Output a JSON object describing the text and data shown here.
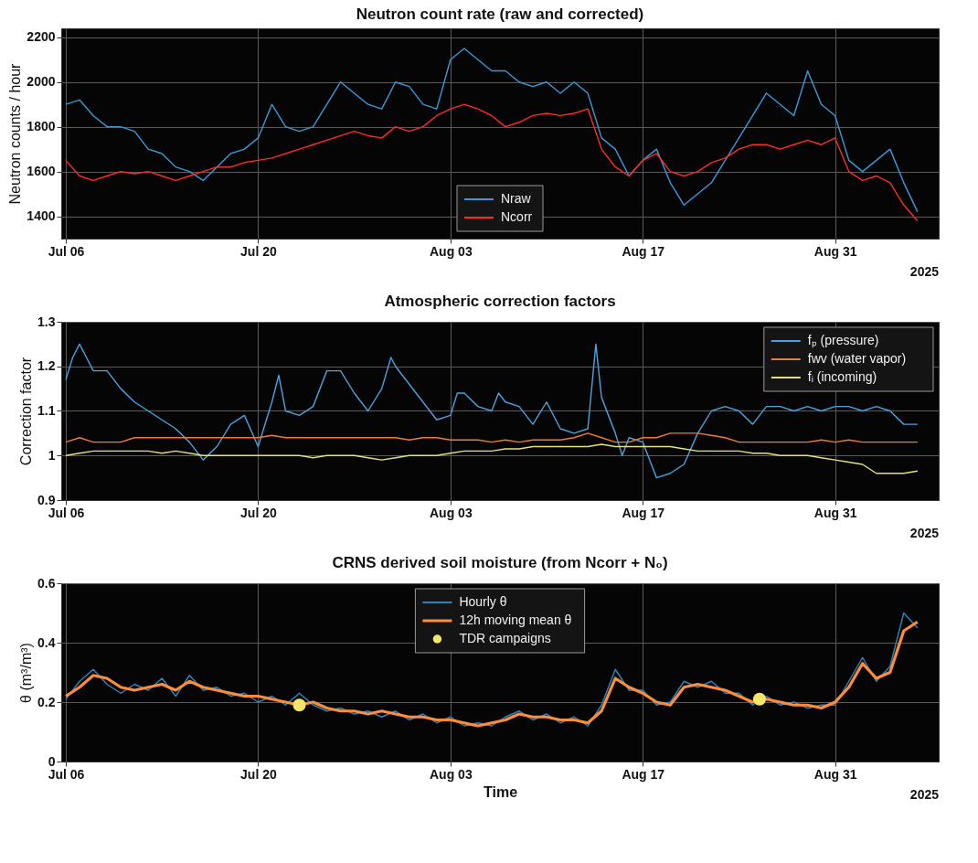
{
  "chart_data": [
    {
      "type": "line",
      "title": "Neutron count rate (raw and corrected)",
      "ylabel": "Neutron counts / hour",
      "x": [
        "2025-07-06",
        "2025-07-07",
        "2025-07-08",
        "2025-07-09",
        "2025-07-10",
        "2025-07-11",
        "2025-07-12",
        "2025-07-13",
        "2025-07-14",
        "2025-07-15",
        "2025-07-16",
        "2025-07-17",
        "2025-07-18",
        "2025-07-19",
        "2025-07-20",
        "2025-07-21",
        "2025-07-22",
        "2025-07-23",
        "2025-07-24",
        "2025-07-25",
        "2025-07-26",
        "2025-07-27",
        "2025-07-28",
        "2025-07-29",
        "2025-07-30",
        "2025-07-31",
        "2025-08-01",
        "2025-08-02",
        "2025-08-03",
        "2025-08-04",
        "2025-08-05",
        "2025-08-06",
        "2025-08-07",
        "2025-08-08",
        "2025-08-09",
        "2025-08-10",
        "2025-08-11",
        "2025-08-12",
        "2025-08-13",
        "2025-08-14",
        "2025-08-15",
        "2025-08-16",
        "2025-08-17",
        "2025-08-18",
        "2025-08-19",
        "2025-08-20",
        "2025-08-21",
        "2025-08-22",
        "2025-08-23",
        "2025-08-24",
        "2025-08-25",
        "2025-08-26",
        "2025-08-27",
        "2025-08-28",
        "2025-08-29",
        "2025-08-30",
        "2025-08-31",
        "2025-09-01",
        "2025-09-02",
        "2025-09-03",
        "2025-09-04",
        "2025-09-05",
        "2025-09-06"
      ],
      "xlim": [
        "2025-07-05T16:00",
        "2025-09-07T13:00"
      ],
      "xticks": [
        {
          "value": "2025-07-06",
          "label": "Jul 06"
        },
        {
          "value": "2025-07-20",
          "label": "Jul 20"
        },
        {
          "value": "2025-08-03",
          "label": "Aug 03"
        },
        {
          "value": "2025-08-17",
          "label": "Aug 17"
        },
        {
          "value": "2025-08-31",
          "label": "Aug 31"
        }
      ],
      "ylim": [
        1300,
        2240
      ],
      "yticks": [
        1400,
        1600,
        1800,
        2000,
        2200
      ],
      "grid": true,
      "legend": "bottom",
      "annotations": [
        "2025"
      ],
      "series": [
        {
          "name": "Nraw",
          "color": "#3a9ad9",
          "values": [
            1900,
            1920,
            1850,
            1800,
            1800,
            1780,
            1700,
            1680,
            1620,
            1600,
            1560,
            1620,
            1680,
            1700,
            1750,
            1900,
            1800,
            1780,
            1800,
            1900,
            2000,
            1950,
            1900,
            1880,
            2000,
            1980,
            1900,
            1880,
            2100,
            2150,
            2100,
            2050,
            2050,
            2000,
            1980,
            2000,
            1950,
            2000,
            1950,
            1750,
            1700,
            1580,
            1650,
            1700,
            1550,
            1450,
            1500,
            1550,
            1650,
            1750,
            1850,
            1950,
            1900,
            1850,
            2050,
            1900,
            1850,
            1650,
            1600,
            1650,
            1700,
            1550,
            1420
          ]
        },
        {
          "name": "Ncorr",
          "color": "#ff2a2a",
          "values": [
            1650,
            1580,
            1560,
            1580,
            1600,
            1590,
            1600,
            1580,
            1560,
            1580,
            1600,
            1620,
            1620,
            1640,
            1650,
            1660,
            1680,
            1700,
            1720,
            1740,
            1760,
            1780,
            1760,
            1750,
            1800,
            1780,
            1800,
            1850,
            1880,
            1900,
            1880,
            1850,
            1800,
            1820,
            1850,
            1860,
            1850,
            1860,
            1880,
            1700,
            1620,
            1580,
            1650,
            1680,
            1600,
            1580,
            1600,
            1640,
            1660,
            1700,
            1720,
            1720,
            1700,
            1720,
            1740,
            1720,
            1750,
            1600,
            1560,
            1580,
            1550,
            1450,
            1380
          ]
        }
      ]
    },
    {
      "type": "line",
      "title": "Atmospheric correction factors",
      "ylabel": "Correction factor",
      "x": [
        "2025-07-06",
        "2025-07-07",
        "2025-07-08",
        "2025-07-09",
        "2025-07-10",
        "2025-07-11",
        "2025-07-12",
        "2025-07-13",
        "2025-07-14",
        "2025-07-15",
        "2025-07-16",
        "2025-07-17",
        "2025-07-18",
        "2025-07-19",
        "2025-07-20",
        "2025-07-21",
        "2025-07-22",
        "2025-07-23",
        "2025-07-24",
        "2025-07-25",
        "2025-07-26",
        "2025-07-27",
        "2025-07-28",
        "2025-07-29",
        "2025-07-30",
        "2025-07-31",
        "2025-08-01",
        "2025-08-02",
        "2025-08-03",
        "2025-08-04",
        "2025-08-05",
        "2025-08-06",
        "2025-08-07",
        "2025-08-08",
        "2025-08-09",
        "2025-08-10",
        "2025-08-11",
        "2025-08-12",
        "2025-08-13",
        "2025-08-14",
        "2025-08-15",
        "2025-08-16",
        "2025-08-17",
        "2025-08-18",
        "2025-08-19",
        "2025-08-20",
        "2025-08-21",
        "2025-08-22",
        "2025-08-23",
        "2025-08-24",
        "2025-08-25",
        "2025-08-26",
        "2025-08-27",
        "2025-08-28",
        "2025-08-29",
        "2025-08-30",
        "2025-08-31",
        "2025-09-01",
        "2025-09-02",
        "2025-09-03",
        "2025-09-04",
        "2025-09-05",
        "2025-09-06"
      ],
      "xlim": [
        "2025-07-05T16:00",
        "2025-09-07T13:00"
      ],
      "xticks": [
        {
          "value": "2025-07-06",
          "label": "Jul 06"
        },
        {
          "value": "2025-07-20",
          "label": "Jul 20"
        },
        {
          "value": "2025-08-03",
          "label": "Aug 03"
        },
        {
          "value": "2025-08-17",
          "label": "Aug 17"
        },
        {
          "value": "2025-08-31",
          "label": "Aug 31"
        }
      ],
      "ylim": [
        0.9,
        1.3
      ],
      "yticks": [
        0.9,
        1,
        1.1,
        1.2,
        1.3
      ],
      "grid": true,
      "legend": "top right",
      "annotations": [
        "2025"
      ],
      "series": [
        {
          "name": "fₚ (pressure)",
          "color": "#4aa3df",
          "x": [
            "2025-07-06",
            "2025-07-06T12:00",
            "2025-07-07",
            "2025-07-07T12:00",
            "2025-07-08",
            "2025-07-09",
            "2025-07-10",
            "2025-07-11",
            "2025-07-12",
            "2025-07-13",
            "2025-07-14",
            "2025-07-15",
            "2025-07-16",
            "2025-07-17",
            "2025-07-18",
            "2025-07-19",
            "2025-07-20",
            "2025-07-21",
            "2025-07-21T12:00",
            "2025-07-22",
            "2025-07-23",
            "2025-07-24",
            "2025-07-25",
            "2025-07-26",
            "2025-07-27",
            "2025-07-28",
            "2025-07-29",
            "2025-07-29T16:00",
            "2025-07-30",
            "2025-07-31",
            "2025-08-01",
            "2025-08-02",
            "2025-08-03",
            "2025-08-03T12:00",
            "2025-08-04",
            "2025-08-05",
            "2025-08-06",
            "2025-08-06T12:00",
            "2025-08-07",
            "2025-08-08",
            "2025-08-09",
            "2025-08-10",
            "2025-08-11",
            "2025-08-12",
            "2025-08-13",
            "2025-08-13T14:00",
            "2025-08-14",
            "2025-08-15",
            "2025-08-15T12:00",
            "2025-08-16",
            "2025-08-17",
            "2025-08-18",
            "2025-08-19",
            "2025-08-20",
            "2025-08-21",
            "2025-08-22",
            "2025-08-23",
            "2025-08-24",
            "2025-08-25",
            "2025-08-26",
            "2025-08-27",
            "2025-08-28",
            "2025-08-29",
            "2025-08-30",
            "2025-08-31",
            "2025-09-01",
            "2025-09-02",
            "2025-09-03",
            "2025-09-04",
            "2025-09-05",
            "2025-09-06"
          ],
          "values": [
            1.17,
            1.22,
            1.25,
            1.22,
            1.19,
            1.19,
            1.15,
            1.12,
            1.1,
            1.08,
            1.06,
            1.03,
            0.99,
            1.02,
            1.07,
            1.09,
            1.02,
            1.12,
            1.18,
            1.1,
            1.09,
            1.11,
            1.19,
            1.19,
            1.14,
            1.1,
            1.15,
            1.22,
            1.2,
            1.16,
            1.12,
            1.08,
            1.09,
            1.14,
            1.14,
            1.11,
            1.1,
            1.14,
            1.12,
            1.11,
            1.07,
            1.12,
            1.06,
            1.05,
            1.06,
            1.25,
            1.13,
            1.05,
            1.0,
            1.04,
            1.03,
            0.95,
            0.96,
            0.98,
            1.05,
            1.1,
            1.11,
            1.1,
            1.07,
            1.11,
            1.11,
            1.1,
            1.11,
            1.1,
            1.11,
            1.11,
            1.1,
            1.11,
            1.1,
            1.07,
            1.07
          ]
        },
        {
          "name": "fwv (water vapor)",
          "color": "#f07a3a",
          "values": [
            1.03,
            1.04,
            1.03,
            1.03,
            1.03,
            1.04,
            1.04,
            1.04,
            1.04,
            1.04,
            1.04,
            1.04,
            1.04,
            1.04,
            1.04,
            1.045,
            1.04,
            1.04,
            1.04,
            1.04,
            1.04,
            1.04,
            1.04,
            1.04,
            1.04,
            1.035,
            1.04,
            1.04,
            1.035,
            1.035,
            1.035,
            1.03,
            1.035,
            1.03,
            1.035,
            1.035,
            1.035,
            1.04,
            1.05,
            1.04,
            1.03,
            1.03,
            1.04,
            1.04,
            1.05,
            1.05,
            1.05,
            1.045,
            1.04,
            1.03,
            1.03,
            1.03,
            1.03,
            1.03,
            1.03,
            1.035,
            1.03,
            1.035,
            1.03,
            1.03,
            1.03,
            1.03,
            1.03
          ]
        },
        {
          "name": "fᵢ (incoming)",
          "color": "#e6e07a",
          "values": [
            1.0,
            1.005,
            1.01,
            1.01,
            1.01,
            1.01,
            1.01,
            1.005,
            1.01,
            1.005,
            1.0,
            1.0,
            1.0,
            1.0,
            1.0,
            1.0,
            1.0,
            1.0,
            0.995,
            1.0,
            1.0,
            1.0,
            0.995,
            0.99,
            0.995,
            1.0,
            1.0,
            1.0,
            1.005,
            1.01,
            1.01,
            1.01,
            1.015,
            1.015,
            1.02,
            1.02,
            1.02,
            1.02,
            1.02,
            1.025,
            1.02,
            1.02,
            1.02,
            1.02,
            1.02,
            1.015,
            1.01,
            1.01,
            1.01,
            1.01,
            1.005,
            1.005,
            1.0,
            1.0,
            1.0,
            0.995,
            0.99,
            0.985,
            0.98,
            0.96,
            0.96,
            0.96,
            0.965
          ]
        }
      ]
    },
    {
      "type": "line",
      "title": "CRNS derived soil moisture (from Ncorr + N₀)",
      "xlabel": "Time",
      "ylabel": "θ (m³/m³)",
      "x": [
        "2025-07-06",
        "2025-07-07",
        "2025-07-08",
        "2025-07-09",
        "2025-07-10",
        "2025-07-11",
        "2025-07-12",
        "2025-07-13",
        "2025-07-14",
        "2025-07-15",
        "2025-07-16",
        "2025-07-17",
        "2025-07-18",
        "2025-07-19",
        "2025-07-20",
        "2025-07-21",
        "2025-07-22",
        "2025-07-23",
        "2025-07-24",
        "2025-07-25",
        "2025-07-26",
        "2025-07-27",
        "2025-07-28",
        "2025-07-29",
        "2025-07-30",
        "2025-07-31",
        "2025-08-01",
        "2025-08-02",
        "2025-08-03",
        "2025-08-04",
        "2025-08-05",
        "2025-08-06",
        "2025-08-07",
        "2025-08-08",
        "2025-08-09",
        "2025-08-10",
        "2025-08-11",
        "2025-08-12",
        "2025-08-13",
        "2025-08-14",
        "2025-08-15",
        "2025-08-16",
        "2025-08-17",
        "2025-08-18",
        "2025-08-19",
        "2025-08-20",
        "2025-08-21",
        "2025-08-22",
        "2025-08-23",
        "2025-08-24",
        "2025-08-25",
        "2025-08-26",
        "2025-08-27",
        "2025-08-28",
        "2025-08-29",
        "2025-08-30",
        "2025-08-31",
        "2025-09-01",
        "2025-09-02",
        "2025-09-03",
        "2025-09-04",
        "2025-09-05",
        "2025-09-06"
      ],
      "xlim": [
        "2025-07-05T16:00",
        "2025-09-07T13:00"
      ],
      "xticks": [
        {
          "value": "2025-07-06",
          "label": "Jul 06"
        },
        {
          "value": "2025-07-20",
          "label": "Jul 20"
        },
        {
          "value": "2025-08-03",
          "label": "Aug 03"
        },
        {
          "value": "2025-08-17",
          "label": "Aug 17"
        },
        {
          "value": "2025-08-31",
          "label": "Aug 31"
        }
      ],
      "ylim": [
        0,
        0.6
      ],
      "yticks": [
        0,
        0.2,
        0.4,
        0.6
      ],
      "grid": true,
      "legend": "top",
      "annotations": [
        "2025"
      ],
      "series": [
        {
          "name": "Hourly θ",
          "color": "#2e86c1",
          "values": [
            0.21,
            0.27,
            0.31,
            0.26,
            0.23,
            0.26,
            0.24,
            0.28,
            0.22,
            0.29,
            0.24,
            0.25,
            0.22,
            0.23,
            0.2,
            0.22,
            0.19,
            0.23,
            0.19,
            0.17,
            0.18,
            0.16,
            0.17,
            0.15,
            0.17,
            0.14,
            0.16,
            0.13,
            0.15,
            0.12,
            0.13,
            0.12,
            0.15,
            0.17,
            0.14,
            0.16,
            0.13,
            0.15,
            0.12,
            0.19,
            0.31,
            0.24,
            0.24,
            0.19,
            0.2,
            0.27,
            0.25,
            0.27,
            0.23,
            0.23,
            0.19,
            0.22,
            0.19,
            0.2,
            0.18,
            0.19,
            0.19,
            0.27,
            0.35,
            0.27,
            0.32,
            0.5,
            0.45
          ]
        },
        {
          "name": "12h moving mean θ",
          "color": "#ff8c3a",
          "values": [
            0.22,
            0.25,
            0.29,
            0.28,
            0.25,
            0.24,
            0.25,
            0.26,
            0.24,
            0.27,
            0.25,
            0.24,
            0.23,
            0.22,
            0.22,
            0.21,
            0.2,
            0.19,
            0.2,
            0.18,
            0.17,
            0.17,
            0.16,
            0.17,
            0.16,
            0.15,
            0.15,
            0.14,
            0.14,
            0.13,
            0.12,
            0.13,
            0.14,
            0.16,
            0.15,
            0.15,
            0.14,
            0.14,
            0.13,
            0.17,
            0.28,
            0.25,
            0.23,
            0.2,
            0.19,
            0.25,
            0.26,
            0.25,
            0.24,
            0.22,
            0.2,
            0.21,
            0.2,
            0.19,
            0.19,
            0.18,
            0.2,
            0.25,
            0.33,
            0.28,
            0.3,
            0.44,
            0.47
          ]
        },
        {
          "name": "TDR campaigns",
          "type": "scatter",
          "marker": "circle",
          "color": "#f5e66a",
          "x": [
            "2025-07-23",
            "2025-08-25T12:00"
          ],
          "values": [
            0.19,
            0.21
          ]
        }
      ]
    }
  ]
}
